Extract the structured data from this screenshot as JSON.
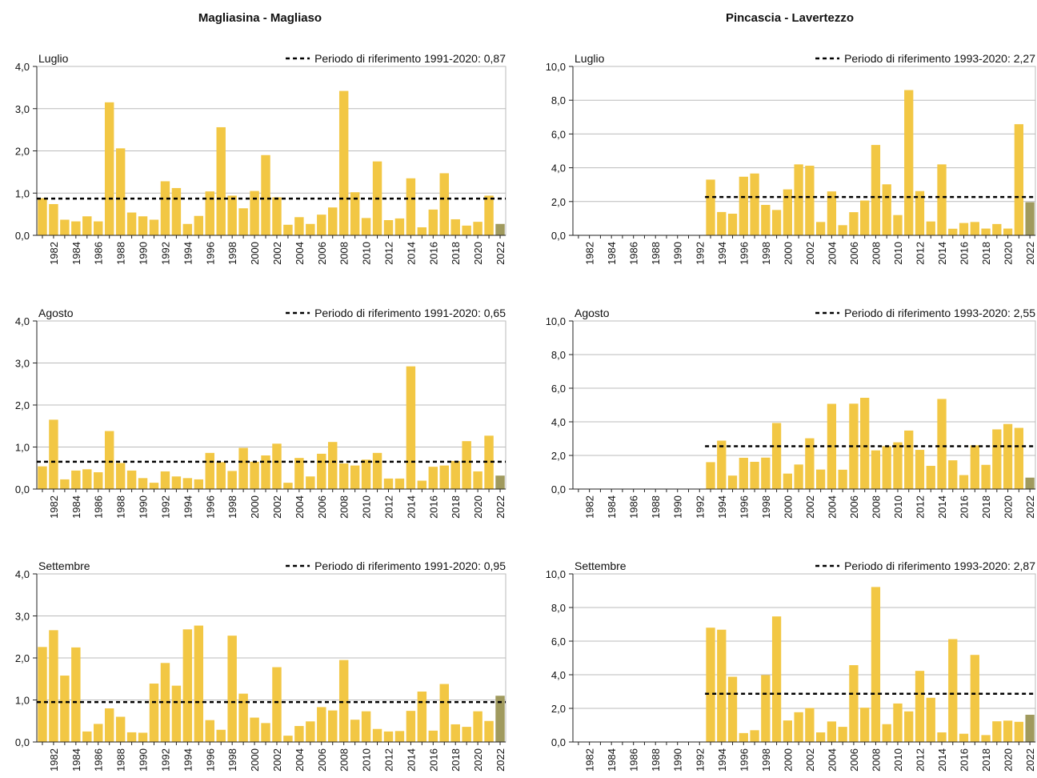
{
  "columns": [
    {
      "title": "Magliasina - Magliaso"
    },
    {
      "title": "Pincascia - Lavertezzo"
    }
  ],
  "colors": {
    "bar": "#f2c744",
    "highlight": "#a09a5e",
    "grid": "#bbbbbb",
    "axis": "#222222",
    "reference": "#000000"
  },
  "chart_data": [
    {
      "type": "bar",
      "column": 0,
      "label": "Luglio",
      "reference_label": "Periodo di riferimento 1991-2020: 0,87",
      "reference_value": 0.87,
      "ylim": [
        0,
        4
      ],
      "yticks": [
        "0,0",
        "1,0",
        "2,0",
        "3,0",
        "4,0"
      ],
      "ytick_values": [
        0,
        1,
        2,
        3,
        4
      ],
      "x_start": 1981,
      "x_end": 2022,
      "highlight": 2022,
      "values": [
        0.88,
        0.74,
        0.37,
        0.33,
        0.45,
        0.33,
        3.15,
        2.06,
        0.54,
        0.45,
        0.37,
        1.28,
        1.12,
        0.27,
        0.46,
        1.04,
        2.56,
        0.94,
        0.64,
        1.05,
        1.9,
        0.9,
        0.25,
        0.43,
        0.27,
        0.49,
        0.66,
        3.42,
        1.02,
        0.41,
        1.75,
        0.36,
        0.4,
        1.35,
        0.19,
        0.61,
        1.47,
        0.38,
        0.23,
        0.32,
        0.94,
        0.27
      ]
    },
    {
      "type": "bar",
      "column": 0,
      "label": "Agosto",
      "reference_label": "Periodo di riferimento 1991-2020: 0,65",
      "reference_value": 0.65,
      "ylim": [
        0,
        4
      ],
      "yticks": [
        "0,0",
        "1,0",
        "2,0",
        "3,0",
        "4,0"
      ],
      "ytick_values": [
        0,
        1,
        2,
        3,
        4
      ],
      "x_start": 1981,
      "x_end": 2022,
      "highlight": 2022,
      "values": [
        0.54,
        1.65,
        0.23,
        0.44,
        0.47,
        0.4,
        1.38,
        0.62,
        0.44,
        0.26,
        0.15,
        0.42,
        0.3,
        0.26,
        0.23,
        0.86,
        0.64,
        0.43,
        0.98,
        0.65,
        0.8,
        1.08,
        0.15,
        0.74,
        0.3,
        0.84,
        1.12,
        0.61,
        0.56,
        0.7,
        0.86,
        0.25,
        0.25,
        2.92,
        0.2,
        0.53,
        0.56,
        0.67,
        1.14,
        0.42,
        1.27,
        0.32
      ]
    },
    {
      "type": "bar",
      "column": 0,
      "label": "Settembre",
      "reference_label": "Periodo di riferimento 1991-2020: 0,95",
      "reference_value": 0.95,
      "ylim": [
        0,
        4
      ],
      "yticks": [
        "0,0",
        "1,0",
        "2,0",
        "3,0",
        "4,0"
      ],
      "ytick_values": [
        0,
        1,
        2,
        3,
        4
      ],
      "x_start": 1981,
      "x_end": 2022,
      "highlight": 2022,
      "values": [
        2.26,
        2.66,
        1.58,
        2.25,
        0.25,
        0.43,
        0.8,
        0.6,
        0.23,
        0.22,
        1.39,
        1.88,
        1.34,
        2.68,
        2.77,
        0.52,
        0.29,
        2.53,
        1.15,
        0.58,
        0.45,
        1.78,
        0.15,
        0.38,
        0.49,
        0.83,
        0.75,
        1.95,
        0.53,
        0.73,
        0.31,
        0.25,
        0.26,
        0.74,
        1.2,
        0.27,
        1.38,
        0.42,
        0.36,
        0.73,
        0.5,
        1.1
      ]
    },
    {
      "type": "bar",
      "column": 1,
      "label": "Luglio",
      "reference_label": "Periodo di riferimento 1993-2020: 2,27",
      "reference_value": 2.27,
      "reference_start": 1993,
      "ylim": [
        0,
        10
      ],
      "yticks": [
        "0,0",
        "2,0",
        "4,0",
        "6,0",
        "8,0",
        "10,0"
      ],
      "ytick_values": [
        0,
        2,
        4,
        6,
        8,
        10
      ],
      "x_start": 1981,
      "x_end": 2022,
      "highlight": 2022,
      "values": [
        null,
        null,
        null,
        null,
        null,
        null,
        null,
        null,
        null,
        null,
        null,
        null,
        3.3,
        1.38,
        1.28,
        3.47,
        3.66,
        1.8,
        1.5,
        2.72,
        4.2,
        4.12,
        0.79,
        2.6,
        0.6,
        1.37,
        2.06,
        5.35,
        3.02,
        1.2,
        8.6,
        2.62,
        0.82,
        4.2,
        0.39,
        0.73,
        0.79,
        0.4,
        0.67,
        0.4,
        6.58,
        1.96
      ]
    },
    {
      "type": "bar",
      "column": 1,
      "label": "Agosto",
      "reference_label": "Periodo di riferimento 1993-2020: 2,55",
      "reference_value": 2.55,
      "reference_start": 1993,
      "ylim": [
        0,
        10
      ],
      "yticks": [
        "0,0",
        "2,0",
        "4,0",
        "6,0",
        "8,0",
        "10,0"
      ],
      "ytick_values": [
        0,
        2,
        4,
        6,
        8,
        10
      ],
      "x_start": 1981,
      "x_end": 2022,
      "highlight": 2022,
      "values": [
        null,
        null,
        null,
        null,
        null,
        null,
        null,
        null,
        null,
        null,
        null,
        null,
        1.6,
        2.88,
        0.8,
        1.86,
        1.62,
        1.87,
        3.93,
        0.92,
        1.46,
        3.02,
        1.16,
        5.07,
        1.15,
        5.08,
        5.43,
        2.3,
        2.55,
        2.78,
        3.48,
        2.33,
        1.38,
        5.36,
        1.71,
        0.83,
        2.6,
        1.44,
        3.55,
        3.87,
        3.64,
        0.68
      ]
    },
    {
      "type": "bar",
      "column": 1,
      "label": "Settembre",
      "reference_label": "Periodo di riferimento 1993-2020: 2,87",
      "reference_value": 2.87,
      "reference_start": 1993,
      "ylim": [
        0,
        10
      ],
      "yticks": [
        "0,0",
        "2,0",
        "4,0",
        "6,0",
        "8,0",
        "10,0"
      ],
      "ytick_values": [
        0,
        2,
        4,
        6,
        8,
        10
      ],
      "x_start": 1981,
      "x_end": 2022,
      "highlight": 2022,
      "values": [
        null,
        null,
        null,
        null,
        null,
        null,
        null,
        null,
        null,
        null,
        null,
        null,
        6.8,
        6.68,
        3.88,
        0.53,
        0.7,
        3.98,
        7.47,
        1.28,
        1.77,
        2.02,
        0.57,
        1.22,
        0.9,
        4.57,
        2.04,
        9.22,
        1.06,
        2.29,
        1.82,
        4.23,
        2.63,
        0.57,
        6.12,
        0.49,
        5.18,
        0.41,
        1.23,
        1.27,
        1.2,
        1.62
      ]
    }
  ]
}
